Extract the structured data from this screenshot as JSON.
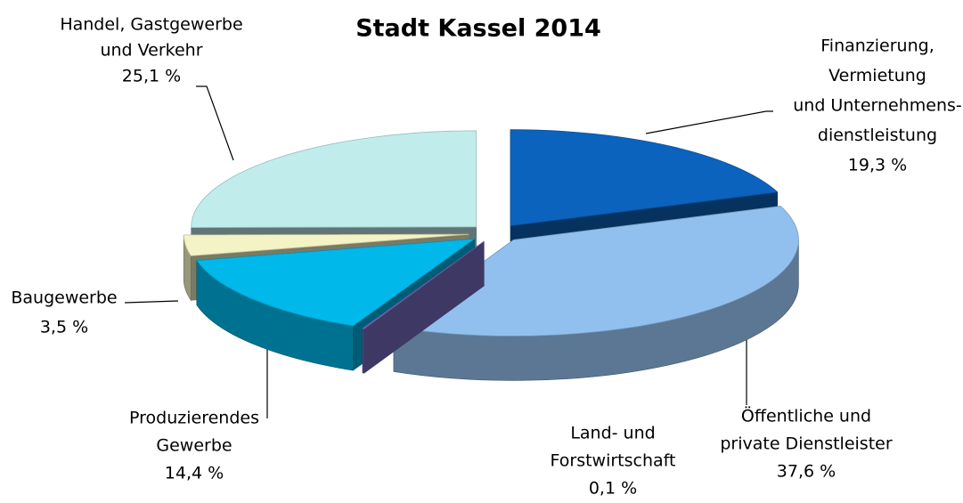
{
  "chart_data": {
    "type": "pie3d",
    "title": "Stadt Kassel 2014",
    "categories": [
      [
        "Finanzierung,",
        "Vermietung",
        "und Unternehmens-",
        "dienstleistung"
      ],
      [
        "Öffentliche und",
        "private Dienstleister"
      ],
      [
        "Land- und",
        "Forstwirtschaft"
      ],
      [
        "Produzierendes",
        "Gewerbe"
      ],
      [
        "Baugewerbe"
      ],
      [
        "Handel, Gastgewerbe",
        "und Verkehr"
      ]
    ],
    "values": [
      19.3,
      37.6,
      0.1,
      14.4,
      3.5,
      25.1
    ],
    "value_labels": [
      "19,3 %",
      "37,6 %",
      "0,1 %",
      "14,4 %",
      "3,5 %",
      "25,1 %"
    ],
    "colors": [
      "#0b63bd",
      "#92c0ee",
      "#7c72c8",
      "#00b8ea",
      "#f3f3c6",
      "#c0ecec"
    ]
  }
}
